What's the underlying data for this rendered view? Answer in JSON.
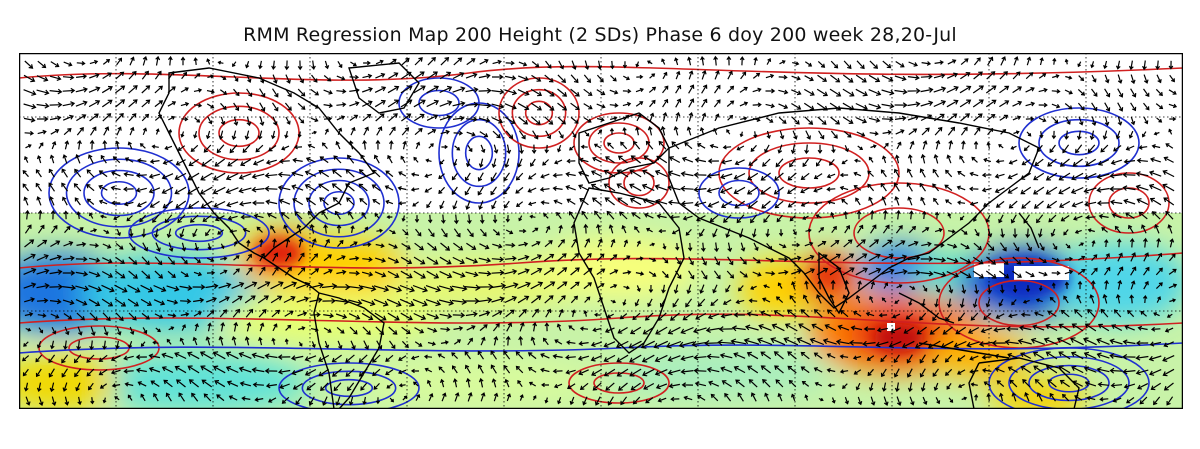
{
  "title": "RMM Regression Map 200 Height (2 SDs) Phase 6 doy 200 week 28,20-Jul",
  "map": {
    "projection": "cylindrical equidistant",
    "gridlines": "dotted",
    "layers": [
      "filled anomaly shading (tropics)",
      "red contours (positive)",
      "blue contours (negative)",
      "black wind vectors",
      "coastlines"
    ],
    "colors": {
      "positive_contour": "#d02020",
      "negative_contour": "#1f2fd0",
      "vectors": "#000000",
      "coastline": "#000000",
      "shading_low": "#1c3fd8",
      "shading_high": "#e01a10"
    }
  }
}
